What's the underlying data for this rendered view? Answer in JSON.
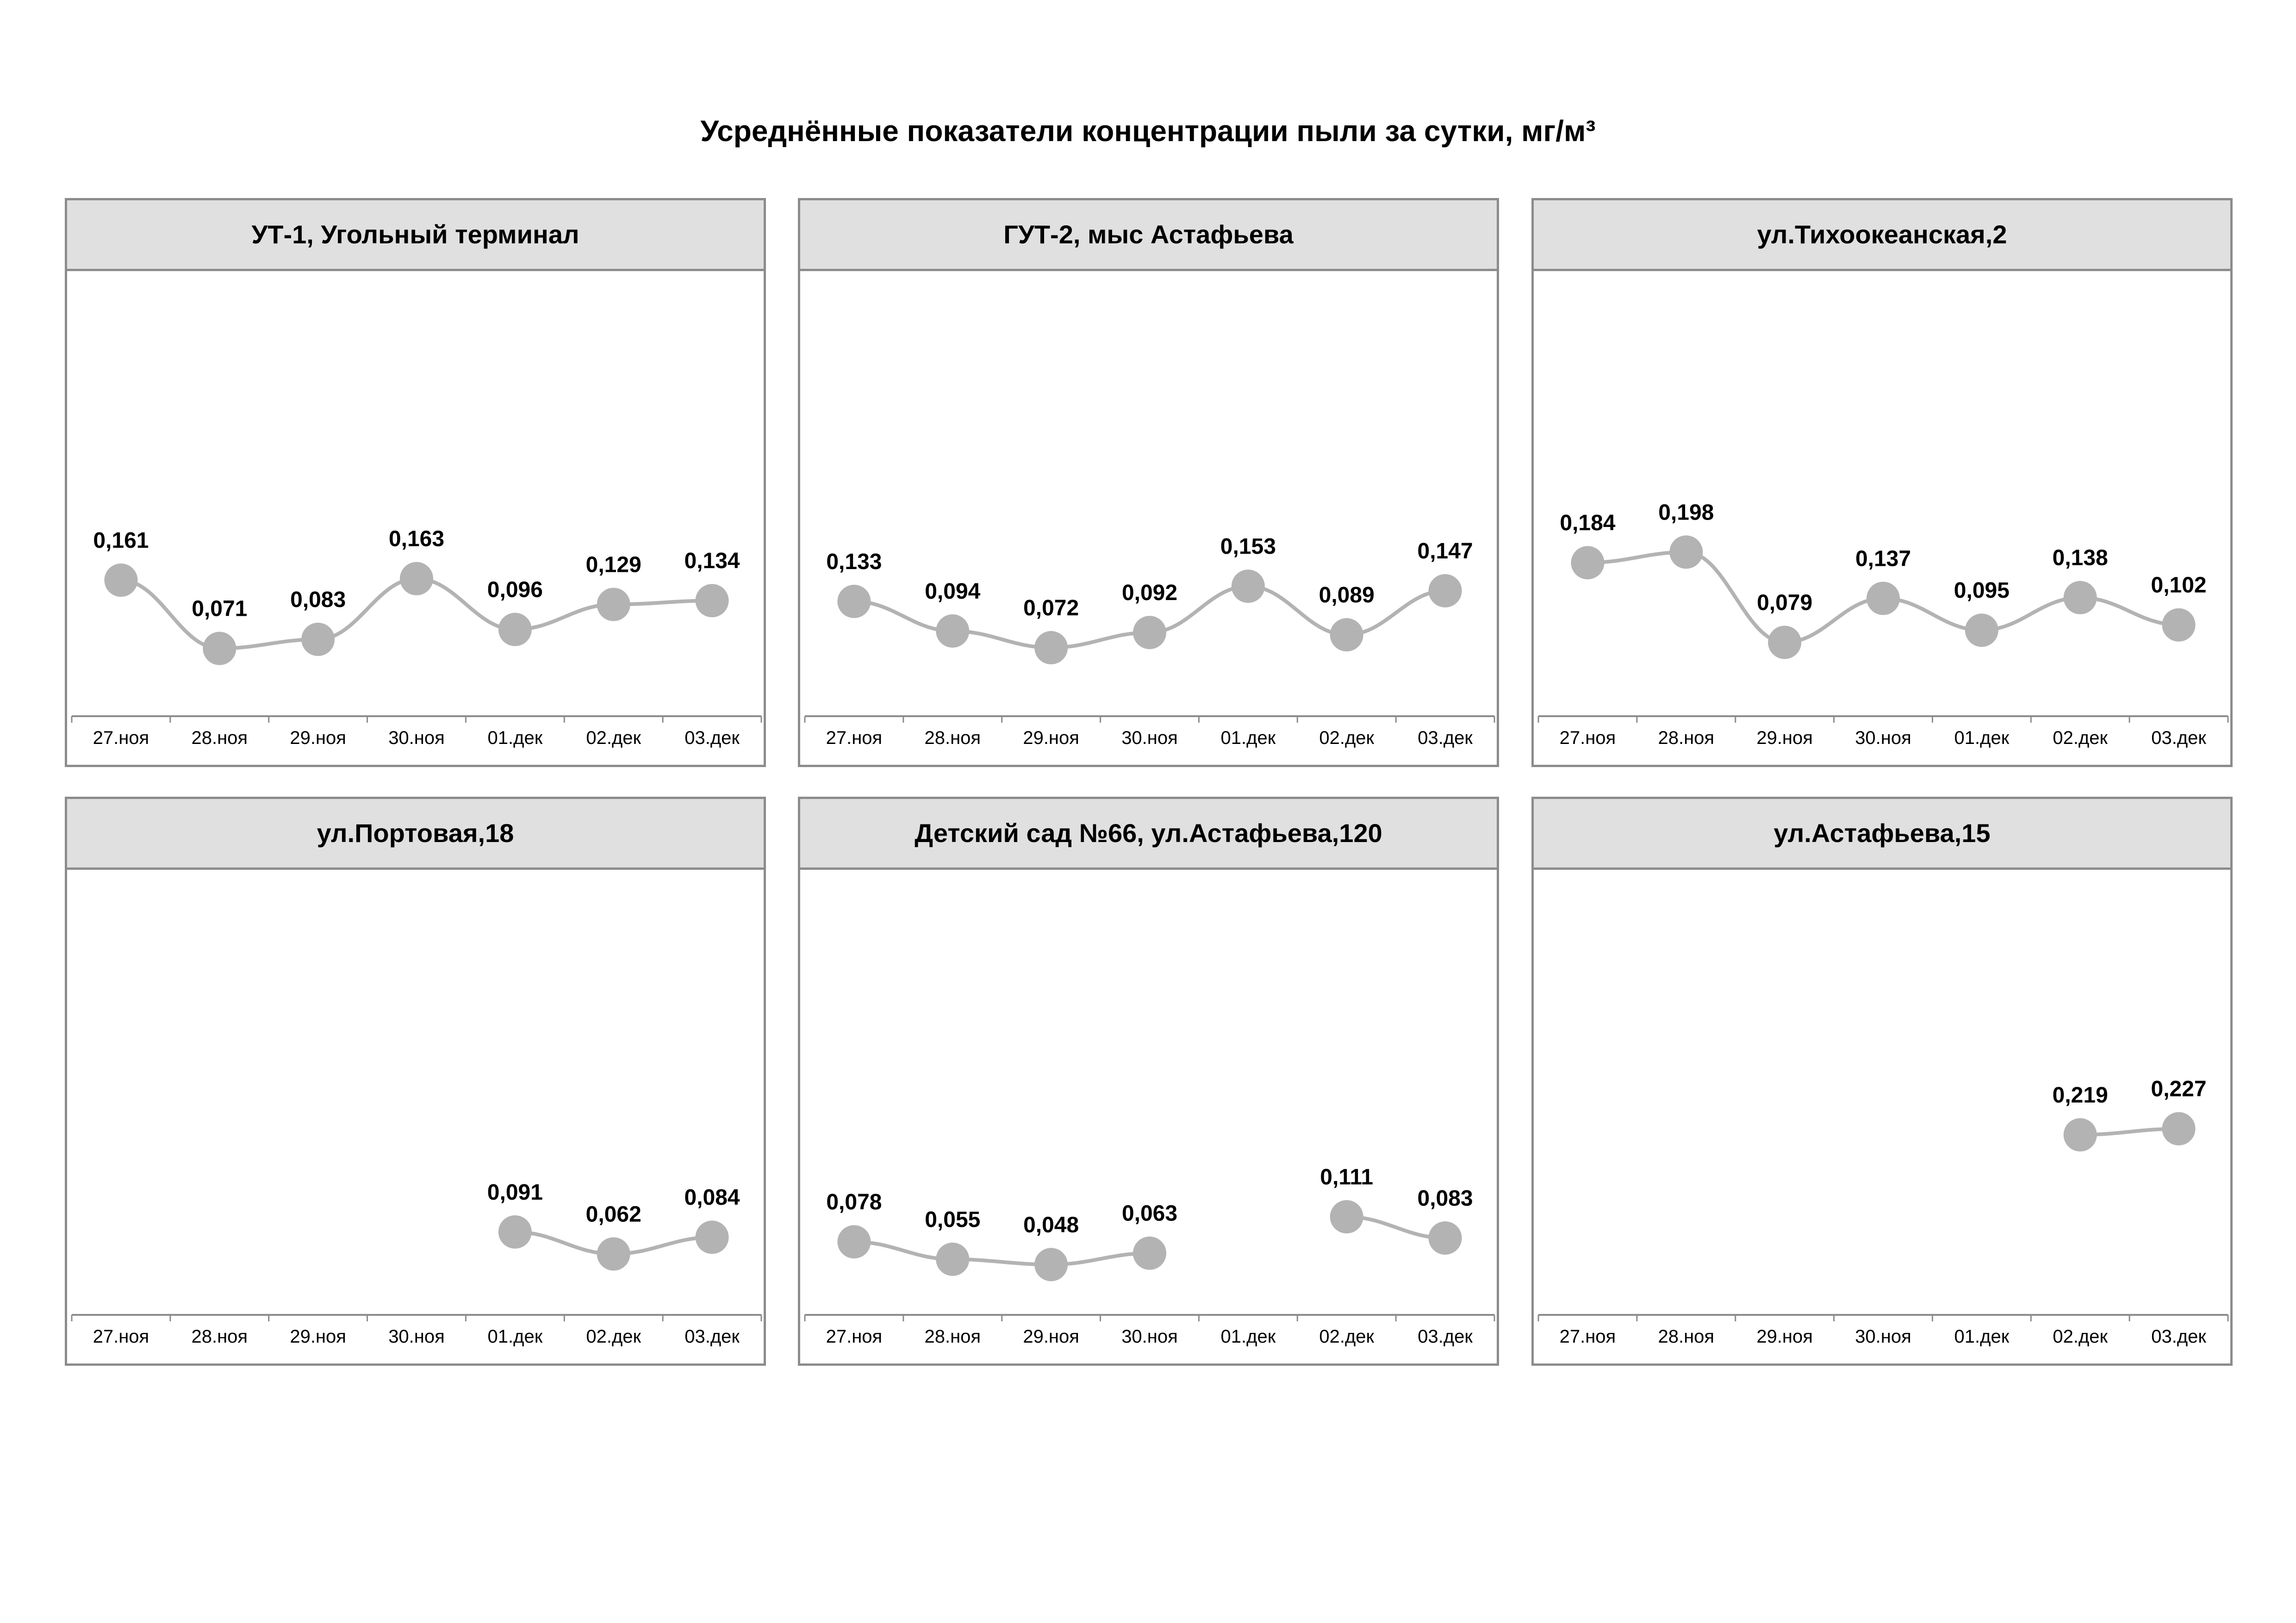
{
  "title": "Усреднённые показатели концентрации пыли за сутки, мг/м³",
  "colors": {
    "marker": "#b3b3b3",
    "line": "#b3b3b3",
    "axis": "#8c8c8c",
    "header_bg": "#e0e0e0"
  },
  "chart_data": [
    {
      "type": "line",
      "title": "УТ-1, Угольный терминал",
      "categories": [
        "27.ноя",
        "28.ноя",
        "29.ноя",
        "30.ноя",
        "01.дек",
        "02.дек",
        "03.дек"
      ],
      "values": [
        0.161,
        0.071,
        0.083,
        0.163,
        0.096,
        0.129,
        0.134
      ],
      "labels": [
        "0,161",
        "0,071",
        "0,083",
        "0,163",
        "0,096",
        "0,129",
        "0,134"
      ],
      "ylim": [
        0,
        0.5
      ]
    },
    {
      "type": "line",
      "title": "ГУТ-2, мыс Астафьева",
      "categories": [
        "27.ноя",
        "28.ноя",
        "29.ноя",
        "30.ноя",
        "01.дек",
        "02.дек",
        "03.дек"
      ],
      "values": [
        0.133,
        0.094,
        0.072,
        0.092,
        0.153,
        0.089,
        0.147
      ],
      "labels": [
        "0,133",
        "0,094",
        "0,072",
        "0,092",
        "0,153",
        "0,089",
        "0,147"
      ],
      "ylim": [
        0,
        0.5
      ]
    },
    {
      "type": "line",
      "title": "ул.Тихоокеанская,2",
      "categories": [
        "27.ноя",
        "28.ноя",
        "29.ноя",
        "30.ноя",
        "01.дек",
        "02.дек",
        "03.дек"
      ],
      "values": [
        0.184,
        0.198,
        0.079,
        0.137,
        0.095,
        0.138,
        0.102
      ],
      "labels": [
        "0,184",
        "0,198",
        "0,079",
        "0,137",
        "0,095",
        "0,138",
        "0,102"
      ],
      "ylim": [
        0,
        0.5
      ]
    },
    {
      "type": "line",
      "title": "ул.Портовая,18",
      "categories": [
        "27.ноя",
        "28.ноя",
        "29.ноя",
        "30.ноя",
        "01.дек",
        "02.дек",
        "03.дек"
      ],
      "values": [
        null,
        null,
        null,
        null,
        0.091,
        0.062,
        0.084
      ],
      "labels": [
        "",
        "",
        "",
        "",
        "0,091",
        "0,062",
        "0,084"
      ],
      "ylim": [
        0,
        0.5
      ]
    },
    {
      "type": "line",
      "title": "Детский сад №66, ул.Астафьева,120",
      "categories": [
        "27.ноя",
        "28.ноя",
        "29.ноя",
        "30.ноя",
        "01.дек",
        "02.дек",
        "03.дек"
      ],
      "values": [
        0.078,
        0.055,
        0.048,
        0.063,
        null,
        0.111,
        0.083
      ],
      "labels": [
        "0,078",
        "0,055",
        "0,048",
        "0,063",
        "",
        "0,111",
        "0,083"
      ],
      "ylim": [
        0,
        0.5
      ]
    },
    {
      "type": "line",
      "title": "ул.Астафьева,15",
      "categories": [
        "27.ноя",
        "28.ноя",
        "29.ноя",
        "30.ноя",
        "01.дек",
        "02.дек",
        "03.дек"
      ],
      "values": [
        null,
        null,
        null,
        null,
        null,
        0.219,
        0.227
      ],
      "labels": [
        "",
        "",
        "",
        "",
        "",
        "0,219",
        "0,227"
      ],
      "ylim": [
        0,
        0.5
      ]
    }
  ]
}
